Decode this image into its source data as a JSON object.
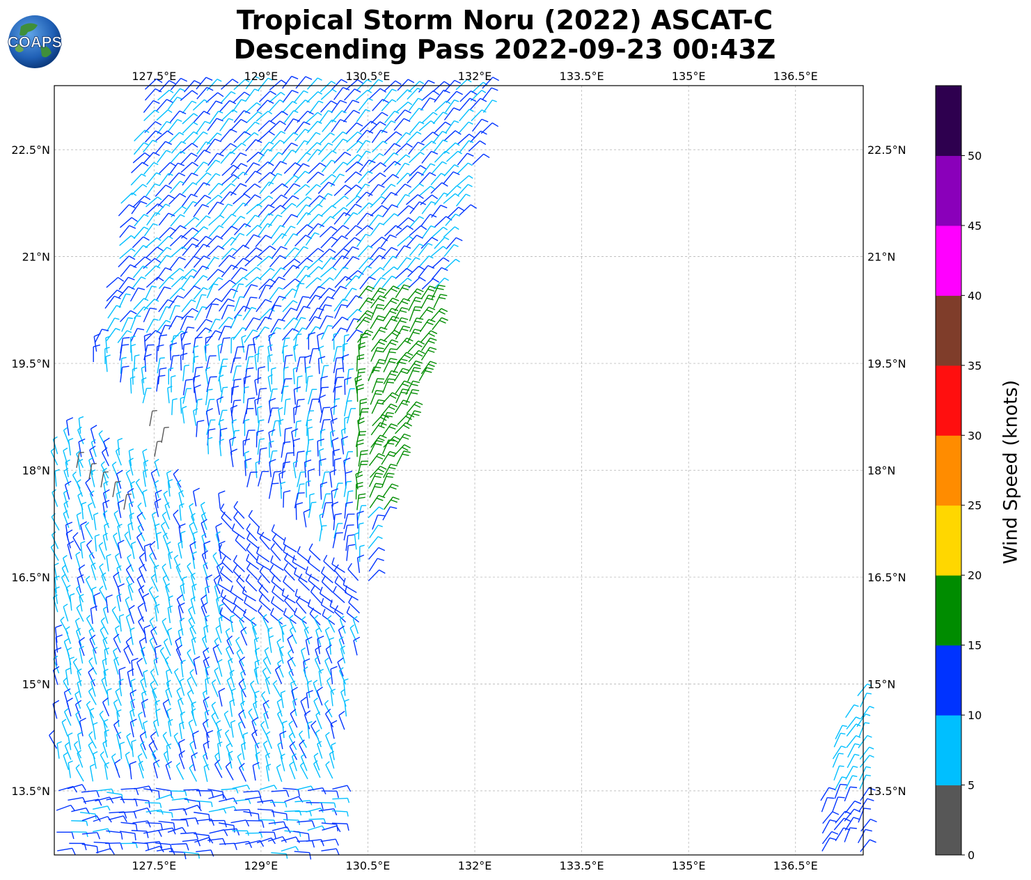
{
  "title": {
    "line1": "Tropical Storm Noru (2022) ASCAT-C",
    "line2": "Descending Pass 2022-09-23 00:43Z"
  },
  "logo": {
    "text": "COAPS"
  },
  "map": {
    "lon_range": [
      126.1,
      137.45
    ],
    "lat_range": [
      12.6,
      23.4
    ],
    "lon_ticks": [
      "127.5°E",
      "129°E",
      "130.5°E",
      "132°E",
      "133.5°E",
      "135°E",
      "136.5°E"
    ],
    "lat_ticks": [
      "22.5°N",
      "21°N",
      "19.5°N",
      "18°N",
      "16.5°N",
      "15°N",
      "13.5°N"
    ],
    "grid": true
  },
  "colorbar": {
    "label": "Wind Speed (knots)",
    "ticks": [
      "0",
      "5",
      "10",
      "15",
      "20",
      "25",
      "30",
      "35",
      "40",
      "45",
      "50"
    ],
    "colors": [
      "#575757",
      "#00bfff",
      "#0033ff",
      "#008c00",
      "#ffd700",
      "#ff8c00",
      "#ff0f0f",
      "#7f3d2a",
      "#ff00ff",
      "#8a00ba",
      "#2e004f"
    ]
  }
}
